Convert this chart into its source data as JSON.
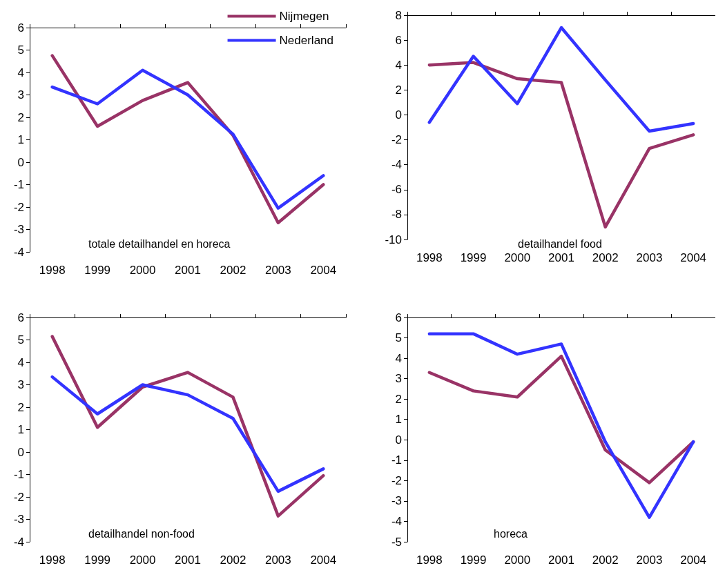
{
  "chart_data": [
    {
      "type": "line",
      "title": "totale detailhandel en horeca",
      "categories": [
        "1998",
        "1999",
        "2000",
        "2001",
        "2002",
        "2003",
        "2004"
      ],
      "ylim": [
        -4,
        6
      ],
      "yticks": [
        -4,
        -3,
        -2,
        -1,
        0,
        1,
        2,
        3,
        4,
        5,
        6
      ],
      "grid": false,
      "legend": "top right",
      "marker": "none",
      "line_style": "solid",
      "series": [
        {
          "name": "Nijmegen",
          "color": "#993366",
          "values": [
            4.75,
            1.6,
            2.75,
            3.55,
            1.2,
            -2.7,
            -1.0
          ]
        },
        {
          "name": "Nederland",
          "color": "#3333ff",
          "values": [
            3.35,
            2.6,
            4.1,
            3.0,
            1.25,
            -2.05,
            -0.6
          ]
        }
      ]
    },
    {
      "type": "line",
      "title": "detailhandel food",
      "categories": [
        "1998",
        "1999",
        "2000",
        "2001",
        "2002",
        "2003",
        "2004"
      ],
      "ylim": [
        -10,
        8
      ],
      "yticks": [
        -10,
        -8,
        -6,
        -4,
        -2,
        0,
        2,
        4,
        6,
        8
      ],
      "grid": false,
      "legend": false,
      "marker": "none",
      "line_style": "solid",
      "series": [
        {
          "color": "#993366",
          "values": [
            4.0,
            4.2,
            2.9,
            2.6,
            -9.0,
            -2.7,
            -1.6
          ]
        },
        {
          "color": "#3333ff",
          "values": [
            -0.6,
            4.7,
            0.9,
            7.0,
            2.8,
            -1.3,
            -0.7
          ]
        }
      ]
    },
    {
      "type": "line",
      "title": "detailhandel non-food",
      "categories": [
        "1998",
        "1999",
        "2000",
        "2001",
        "2002",
        "2003",
        "2004"
      ],
      "ylim": [
        -4,
        6
      ],
      "yticks": [
        -4,
        -3,
        -2,
        -1,
        0,
        1,
        2,
        3,
        4,
        5,
        6
      ],
      "grid": false,
      "legend": false,
      "marker": "none",
      "line_style": "solid",
      "series": [
        {
          "color": "#993366",
          "values": [
            5.15,
            1.1,
            2.9,
            3.55,
            2.45,
            -2.85,
            -1.05
          ]
        },
        {
          "color": "#3333ff",
          "values": [
            3.35,
            1.7,
            3.0,
            2.55,
            1.5,
            -1.75,
            -0.75
          ]
        }
      ]
    },
    {
      "type": "line",
      "title": "horeca",
      "categories": [
        "1998",
        "1999",
        "2000",
        "2001",
        "2002",
        "2003",
        "2004"
      ],
      "ylim": [
        -5,
        6
      ],
      "yticks": [
        -5,
        -4,
        -3,
        -2,
        -1,
        0,
        1,
        2,
        3,
        4,
        5,
        6
      ],
      "grid": false,
      "legend": false,
      "marker": "none",
      "line_style": "solid",
      "series": [
        {
          "color": "#993366",
          "values": [
            3.3,
            2.4,
            2.1,
            4.1,
            -0.5,
            -2.1,
            -0.1
          ]
        },
        {
          "color": "#3333ff",
          "values": [
            5.2,
            5.2,
            4.2,
            4.7,
            -0.1,
            -3.8,
            -0.1
          ]
        }
      ]
    }
  ]
}
